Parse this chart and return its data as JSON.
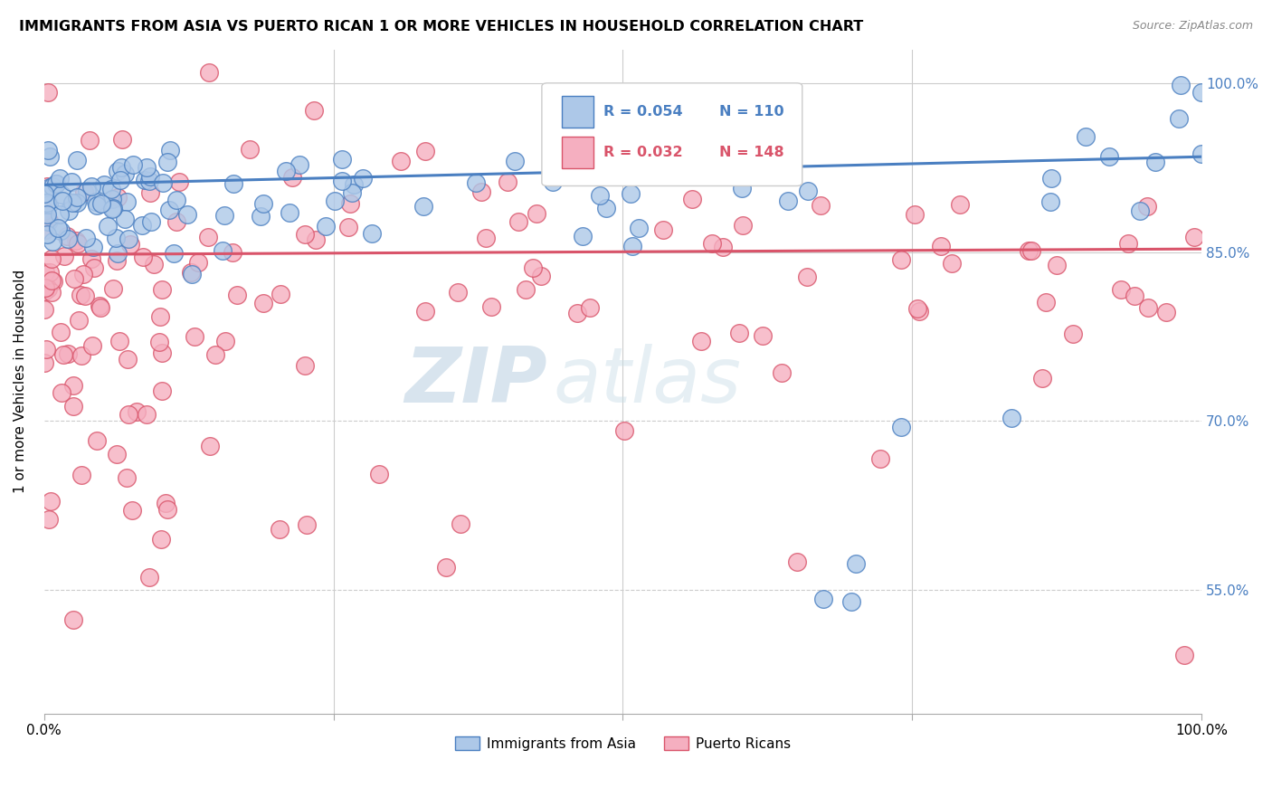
{
  "title": "IMMIGRANTS FROM ASIA VS PUERTO RICAN 1 OR MORE VEHICLES IN HOUSEHOLD CORRELATION CHART",
  "source": "Source: ZipAtlas.com",
  "ylabel": "1 or more Vehicles in Household",
  "xlim": [
    0.0,
    1.0
  ],
  "ylim": [
    0.44,
    1.03
  ],
  "yticks": [
    0.55,
    0.7,
    0.85,
    1.0
  ],
  "ytick_labels": [
    "55.0%",
    "70.0%",
    "85.0%",
    "100.0%"
  ],
  "blue_color": "#adc8e8",
  "pink_color": "#f5afc0",
  "blue_line_color": "#4a7fc1",
  "pink_line_color": "#d9546a",
  "blue_trend": [
    0.91,
    0.935
  ],
  "pink_trend": [
    0.848,
    0.853
  ],
  "watermark_zip": "ZIP",
  "watermark_atlas": "atlas",
  "grid_color": "#e0e0e0",
  "grid_style_solid": [
    0.85,
    1.0
  ],
  "grid_style_dashed": [
    0.55,
    0.7
  ]
}
